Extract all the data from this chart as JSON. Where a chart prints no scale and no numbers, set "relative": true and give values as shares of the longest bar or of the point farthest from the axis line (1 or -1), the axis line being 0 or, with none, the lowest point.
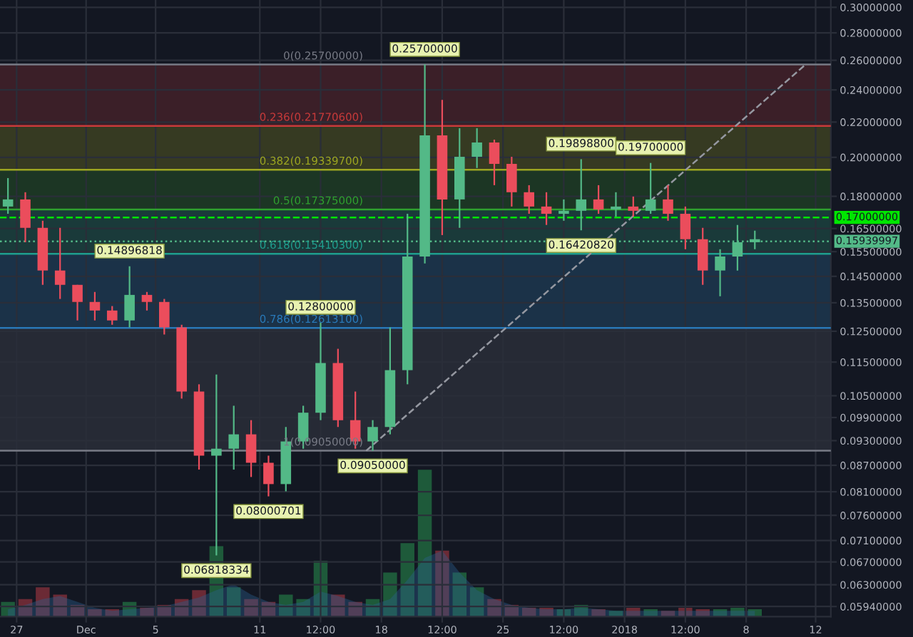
{
  "chart_data": [
    {
      "type": "candlestick",
      "x": [
        "2017-11-26T12:00",
        "2017-11-27T12:00",
        "2017-11-28T12:00",
        "2017-11-29T12:00",
        "2017-11-30T12:00",
        "2017-12-01T12:00",
        "2017-12-02T12:00",
        "2017-12-03T12:00",
        "2017-12-04T12:00",
        "2017-12-05T12:00",
        "2017-12-06T12:00",
        "2017-12-07T12:00",
        "2017-12-08T12:00",
        "2017-12-09T12:00",
        "2017-12-10T12:00",
        "2017-12-11T12:00",
        "2017-12-12T12:00",
        "2017-12-13T12:00",
        "2017-12-14T12:00",
        "2017-12-15T12:00",
        "2017-12-16T12:00",
        "2017-12-17T12:00",
        "2017-12-18T12:00",
        "2017-12-19T12:00",
        "2017-12-20T12:00",
        "2017-12-21T12:00",
        "2017-12-22T12:00",
        "2017-12-23T12:00",
        "2017-12-24T12:00",
        "2017-12-25T12:00",
        "2017-12-26T12:00",
        "2017-12-27T12:00",
        "2017-12-28T12:00",
        "2017-12-29T12:00",
        "2017-12-30T12:00",
        "2017-12-31T12:00",
        "2018-01-01T12:00",
        "2018-01-02T12:00",
        "2018-01-03T12:00",
        "2018-01-04T12:00",
        "2018-01-05T12:00",
        "2018-01-06T12:00",
        "2018-01-07T12:00",
        "2018-01-08T12:00"
      ],
      "ohlc": [
        [
          0.1751,
          0.1891,
          0.1717,
          0.1785
        ],
        [
          0.1785,
          0.182,
          0.159,
          0.1653
        ],
        [
          0.1653,
          0.1685,
          0.1417,
          0.1473
        ],
        [
          0.1473,
          0.1653,
          0.1364,
          0.1417
        ],
        [
          0.1417,
          0.1417,
          0.1287,
          0.1353
        ],
        [
          0.1353,
          0.139,
          0.1287,
          0.1322
        ],
        [
          0.1322,
          0.1338,
          0.1272,
          0.1287
        ],
        [
          0.1287,
          0.149,
          0.1263,
          0.1379
        ],
        [
          0.1379,
          0.139,
          0.1322,
          0.1353
        ],
        [
          0.1353,
          0.1364,
          0.1239,
          0.1263
        ],
        [
          0.1263,
          0.1272,
          0.1042,
          0.1062
        ],
        [
          0.1062,
          0.1083,
          0.086,
          0.0893
        ],
        [
          0.0893,
          0.1112,
          0.0682,
          0.091
        ],
        [
          0.091,
          0.1022,
          0.086,
          0.0946
        ],
        [
          0.0946,
          0.0983,
          0.0843,
          0.0876
        ],
        [
          0.0876,
          0.0893,
          0.08,
          0.0827
        ],
        [
          0.0827,
          0.0965,
          0.0811,
          0.0928
        ],
        [
          0.0928,
          0.1022,
          0.091,
          0.1003
        ],
        [
          0.1003,
          0.128,
          0.0983,
          0.1147
        ],
        [
          0.1147,
          0.1192,
          0.0965,
          0.0983
        ],
        [
          0.0983,
          0.1062,
          0.091,
          0.0928
        ],
        [
          0.0928,
          0.0983,
          0.0905,
          0.0965
        ],
        [
          0.0965,
          0.1263,
          0.0946,
          0.1125
        ],
        [
          0.1125,
          0.1717,
          0.1083,
          0.153
        ],
        [
          0.153,
          0.257,
          0.1501,
          0.2122
        ],
        [
          0.2122,
          0.2336,
          0.1621,
          0.1785
        ],
        [
          0.1785,
          0.2164,
          0.1653,
          0.2003
        ],
        [
          0.2003,
          0.2164,
          0.1943,
          0.2082
        ],
        [
          0.2082,
          0.2098,
          0.1855,
          0.1965
        ],
        [
          0.1965,
          0.2003,
          0.1751,
          0.182
        ],
        [
          0.182,
          0.1855,
          0.1717,
          0.1751
        ],
        [
          0.1751,
          0.182,
          0.1666,
          0.1717
        ],
        [
          0.1717,
          0.1785,
          0.1685,
          0.1731
        ],
        [
          0.1731,
          0.199,
          0.1642,
          0.1785
        ],
        [
          0.1785,
          0.1855,
          0.1717,
          0.1737
        ],
        [
          0.1737,
          0.182,
          0.1704,
          0.1751
        ],
        [
          0.1751,
          0.1799,
          0.1704,
          0.1731
        ],
        [
          0.1731,
          0.197,
          0.1717,
          0.1785
        ],
        [
          0.1785,
          0.1855,
          0.1685,
          0.1717
        ],
        [
          0.1717,
          0.1751,
          0.156,
          0.1603
        ],
        [
          0.1603,
          0.1653,
          0.1417,
          0.1473
        ],
        [
          0.1473,
          0.156,
          0.1374,
          0.153
        ],
        [
          0.153,
          0.1666,
          0.1473,
          0.159
        ],
        [
          0.159,
          0.164,
          0.156,
          0.1603
        ]
      ],
      "colors": [
        "#53b987",
        "#eb4d5c",
        "#eb4d5c",
        "#eb4d5c",
        "#eb4d5c",
        "#eb4d5c",
        "#eb4d5c",
        "#53b987",
        "#eb4d5c",
        "#eb4d5c",
        "#eb4d5c",
        "#eb4d5c",
        "#53b987",
        "#53b987",
        "#eb4d5c",
        "#eb4d5c",
        "#53b987",
        "#53b987",
        "#53b987",
        "#eb4d5c",
        "#eb4d5c",
        "#53b987",
        "#53b987",
        "#53b987",
        "#53b987",
        "#eb4d5c",
        "#53b987",
        "#53b987",
        "#eb4d5c",
        "#eb4d5c",
        "#eb4d5c",
        "#eb4d5c",
        "#53b987",
        "#53b987",
        "#eb4d5c",
        "#53b987",
        "#eb4d5c",
        "#53b987",
        "#eb4d5c",
        "#eb4d5c",
        "#eb4d5c",
        "#53b987",
        "#53b987",
        "#53b987"
      ],
      "series": [
        {
          "type": "line",
          "x": [
            "2017-12-17T03:00",
            "2018-01-11T10:00"
          ],
          "values": [
            0.0905,
            0.257
          ],
          "color": "#9598a1",
          "line_style": "dashed"
        }
      ],
      "log": true,
      "xlim": [
        "2017-11-26T01:00",
        "2018-01-12T21:00"
      ],
      "xticks": [
        {
          "value": "2017-11-27",
          "label": "27"
        },
        {
          "value": "2017-12-01",
          "label": "Dec"
        },
        {
          "value": "2017-12-05",
          "label": "5"
        },
        {
          "value": "2017-12-11",
          "label": "11"
        },
        {
          "value": "2017-12-14T12:00",
          "label": "12:00"
        },
        {
          "value": "2017-12-18",
          "label": "18"
        },
        {
          "value": "2017-12-21T12:00",
          "label": "12:00"
        },
        {
          "value": "2017-12-25",
          "label": "25"
        },
        {
          "value": "2017-12-28T12:00",
          "label": "12:00"
        },
        {
          "value": "2018-01-01",
          "label": "2018"
        },
        {
          "value": "2018-01-04T12:00",
          "label": "12:00"
        },
        {
          "value": "2018-01-08",
          "label": "8"
        },
        {
          "value": "2018-01-12",
          "label": "12"
        }
      ],
      "ylim": [
        0.0578,
        0.306
      ],
      "yticks": [
        {
          "value": 0.3,
          "label": "0.30000000"
        },
        {
          "value": 0.28,
          "label": "0.28000000"
        },
        {
          "value": 0.26,
          "label": "0.26000000"
        },
        {
          "value": 0.24,
          "label": "0.24000000"
        },
        {
          "value": 0.22,
          "label": "0.22000000"
        },
        {
          "value": 0.2,
          "label": "0.20000000"
        },
        {
          "value": 0.18,
          "label": "0.18000000"
        },
        {
          "value": 0.165,
          "label": "0.16500000"
        },
        {
          "value": 0.155,
          "label": "0.15500000"
        },
        {
          "value": 0.145,
          "label": "0.14500000"
        },
        {
          "value": 0.135,
          "label": "0.13500000"
        },
        {
          "value": 0.125,
          "label": "0.12500000"
        },
        {
          "value": 0.115,
          "label": "0.11500000"
        },
        {
          "value": 0.105,
          "label": "0.10500000"
        },
        {
          "value": 0.099,
          "label": "0.09900000"
        },
        {
          "value": 0.093,
          "label": "0.09300000"
        },
        {
          "value": 0.087,
          "label": "0.08700000"
        },
        {
          "value": 0.081,
          "label": "0.08100000"
        },
        {
          "value": 0.076,
          "label": "0.07600000"
        },
        {
          "value": 0.071,
          "label": "0.07100000"
        },
        {
          "value": 0.067,
          "label": "0.06700000"
        },
        {
          "value": 0.063,
          "label": "0.06300000"
        },
        {
          "value": 0.0594,
          "label": "0.05940000"
        }
      ],
      "grid": true,
      "bands": [
        {
          "axis": "y",
          "from": 0.2177,
          "to": 0.257,
          "color": "#3b1f28"
        },
        {
          "axis": "y",
          "from": 0.1934,
          "to": 0.2177,
          "color": "#363a22"
        },
        {
          "axis": "y",
          "from": 0.17375,
          "to": 0.1934,
          "color": "#1c3624"
        },
        {
          "axis": "y",
          "from": 0.1541,
          "to": 0.17375,
          "color": "#1a3a3a"
        },
        {
          "axis": "y",
          "from": 0.1261,
          "to": 0.1541,
          "color": "#1b3248"
        },
        {
          "axis": "y",
          "from": 0.0905,
          "to": 0.1261,
          "color": "#262a35"
        }
      ],
      "ref_lines": [
        {
          "axis": "y",
          "value": 0.257,
          "label": "0(0.25700000)",
          "color": "#787b86",
          "line_style": "solid"
        },
        {
          "axis": "y",
          "value": 0.217706,
          "label": "0.236(0.21770600)",
          "color": "#c73a3a",
          "line_style": "solid"
        },
        {
          "axis": "y",
          "value": 0.193397,
          "label": "0.382(0.19339700)",
          "color": "#9da620",
          "line_style": "solid"
        },
        {
          "axis": "y",
          "value": 0.17375,
          "label": "0.5(0.17375000)",
          "color": "#2fa02f",
          "line_style": "solid"
        },
        {
          "axis": "y",
          "value": 0.154103,
          "label": "0.618(0.15410300)",
          "color": "#1f9e8e",
          "line_style": "solid"
        },
        {
          "axis": "y",
          "value": 0.126131,
          "label": "0.786(0.12613100)",
          "color": "#2979b8",
          "line_style": "solid"
        },
        {
          "axis": "y",
          "value": 0.0905,
          "label": "1(0.09050000)",
          "color": "#787b86",
          "line_style": "solid"
        },
        {
          "axis": "y",
          "value": 0.17,
          "label": "0.17000000",
          "color": "#00e600",
          "line_style": "dashed"
        },
        {
          "axis": "y",
          "value": 0.15939997,
          "label": "0.15939997",
          "color": "#53b987",
          "line_style": "dotted"
        }
      ],
      "annotations": [
        {
          "text": "0.14896818",
          "x": "2017-12-03T12:00",
          "y": 0.149
        },
        {
          "text": "0.12800000",
          "x": "2017-12-14T12:00",
          "y": 0.128
        },
        {
          "text": "0.09050000",
          "x": "2017-12-17T12:00",
          "y": 0.0905
        },
        {
          "text": "0.08000701",
          "x": "2017-12-11T12:00",
          "y": 0.08
        },
        {
          "text": "0.06818334",
          "x": "2017-12-08T12:00",
          "y": 0.0682
        },
        {
          "text": "0.25700000",
          "x": "2017-12-20T12:00",
          "y": 0.257
        },
        {
          "text": "0.19898800",
          "x": "2017-12-29T12:00",
          "y": 0.199
        },
        {
          "text": "0.19700000",
          "x": "2018-01-02T12:00",
          "y": 0.197
        },
        {
          "text": "0.16420820",
          "x": "2017-12-29T12:00",
          "y": 0.1642
        }
      ]
    },
    {
      "type": "bar",
      "relative": true,
      "tick_labels": false,
      "x": [
        "2017-11-26T12:00",
        "2017-11-27T12:00",
        "2017-11-28T12:00",
        "2017-11-29T12:00",
        "2017-11-30T12:00",
        "2017-12-01T12:00",
        "2017-12-02T12:00",
        "2017-12-03T12:00",
        "2017-12-04T12:00",
        "2017-12-05T12:00",
        "2017-12-06T12:00",
        "2017-12-07T12:00",
        "2017-12-08T12:00",
        "2017-12-09T12:00",
        "2017-12-10T12:00",
        "2017-12-11T12:00",
        "2017-12-12T12:00",
        "2017-12-13T12:00",
        "2017-12-14T12:00",
        "2017-12-15T12:00",
        "2017-12-16T12:00",
        "2017-12-17T12:00",
        "2017-12-18T12:00",
        "2017-12-19T12:00",
        "2017-12-20T12:00",
        "2017-12-21T12:00",
        "2017-12-22T12:00",
        "2017-12-23T12:00",
        "2017-12-24T12:00",
        "2017-12-25T12:00",
        "2017-12-26T12:00",
        "2017-12-27T12:00",
        "2017-12-28T12:00",
        "2017-12-29T12:00",
        "2017-12-30T12:00",
        "2017-12-31T12:00",
        "2018-01-01T12:00",
        "2018-01-02T12:00",
        "2018-01-03T12:00",
        "2018-01-04T12:00",
        "2018-01-05T12:00",
        "2018-01-06T12:00",
        "2018-01-07T12:00",
        "2018-01-08T12:00"
      ],
      "xlim": [
        "2017-11-26T01:00",
        "2018-01-12T21:00"
      ],
      "series": [
        {
          "type": "area",
          "color": "#2a5f8f",
          "values": [
            0.05,
            0.08,
            0.12,
            0.14,
            0.1,
            0.06,
            0.04,
            0.05,
            0.06,
            0.07,
            0.1,
            0.13,
            0.18,
            0.22,
            0.15,
            0.1,
            0.08,
            0.1,
            0.17,
            0.14,
            0.1,
            0.08,
            0.12,
            0.25,
            0.4,
            0.45,
            0.3,
            0.18,
            0.12,
            0.08,
            0.06,
            0.05,
            0.05,
            0.06,
            0.05,
            0.04,
            0.04,
            0.04,
            0.04,
            0.04,
            0.04,
            0.04,
            0.04,
            0.04
          ]
        },
        {
          "type": "bar",
          "colors": [
            "#1e5a3a",
            "#6b2a35",
            "#6b2a35",
            "#6b2a35",
            "#6b2a35",
            "#6b2a35",
            "#6b2a35",
            "#1e5a3a",
            "#6b2a35",
            "#6b2a35",
            "#6b2a35",
            "#6b2a35",
            "#1e5a3a",
            "#1e5a3a",
            "#6b2a35",
            "#6b2a35",
            "#1e5a3a",
            "#1e5a3a",
            "#1e5a3a",
            "#6b2a35",
            "#6b2a35",
            "#1e5a3a",
            "#1e5a3a",
            "#1e5a3a",
            "#1e5a3a",
            "#6b2a35",
            "#1e5a3a",
            "#1e5a3a",
            "#6b2a35",
            "#6b2a35",
            "#6b2a35",
            "#6b2a35",
            "#1e5a3a",
            "#1e5a3a",
            "#6b2a35",
            "#1e5a3a",
            "#6b2a35",
            "#1e5a3a",
            "#6b2a35",
            "#6b2a35",
            "#6b2a35",
            "#1e5a3a",
            "#1e5a3a",
            "#1e5a3a"
          ],
          "values": [
            0.1,
            0.12,
            0.2,
            0.15,
            0.08,
            0.05,
            0.05,
            0.1,
            0.06,
            0.08,
            0.12,
            0.18,
            0.48,
            0.2,
            0.12,
            0.1,
            0.15,
            0.12,
            0.38,
            0.15,
            0.1,
            0.12,
            0.3,
            0.5,
            1,
            0.45,
            0.3,
            0.2,
            0.12,
            0.08,
            0.06,
            0.06,
            0.05,
            0.08,
            0.05,
            0.04,
            0.06,
            0.05,
            0.04,
            0.06,
            0.05,
            0.05,
            0.06,
            0.05
          ]
        }
      ]
    }
  ]
}
